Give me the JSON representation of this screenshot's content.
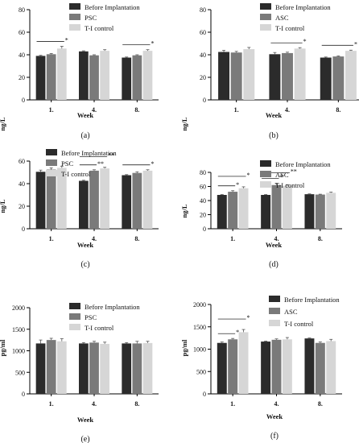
{
  "figure": {
    "background": "#ffffff",
    "axis_color": "#000000",
    "series_colors": [
      "#2b2b2b",
      "#7a7a7a",
      "#d6d6d6"
    ]
  },
  "chart_data": [
    {
      "type": "bar",
      "panel_label": "(a)",
      "ylabel": "ng/L",
      "xlabel": "Week",
      "ylim": [
        0,
        80
      ],
      "yticks": [
        "0",
        "20",
        "40",
        "60",
        "80"
      ],
      "categories": [
        "1.",
        "4.",
        "8."
      ],
      "legend_position": "top-right",
      "series": [
        {
          "name": "Before Implantation",
          "values": [
            39,
            43,
            37.5
          ],
          "errors": [
            0.5,
            0.5,
            0.5
          ]
        },
        {
          "name": "PSC",
          "values": [
            40.5,
            39.5,
            39.5
          ],
          "errors": [
            0.6,
            0.5,
            0.5
          ]
        },
        {
          "name": "T-I control",
          "values": [
            45.5,
            43.5,
            43.5
          ],
          "errors": [
            2,
            1,
            1
          ]
        }
      ],
      "significance": [
        {
          "group": 0,
          "from": 0,
          "to": 2,
          "label": "*"
        },
        {
          "group": 2,
          "from": 0,
          "to": 2,
          "label": "*"
        }
      ]
    },
    {
      "type": "bar",
      "panel_label": "(b)",
      "ylabel": "ng/L",
      "xlabel": "Week",
      "ylim": [
        0,
        80
      ],
      "yticks": [
        "0",
        "20",
        "40",
        "60",
        "80"
      ],
      "categories": [
        "1.",
        "4.",
        "8."
      ],
      "legend_position": "top-right",
      "series": [
        {
          "name": "Before Implantation",
          "values": [
            42.5,
            40.5,
            37.5
          ],
          "errors": [
            1.5,
            1.5,
            0.5
          ]
        },
        {
          "name": "ASC",
          "values": [
            42,
            41.5,
            38.5
          ],
          "errors": [
            1,
            0.8,
            0.5
          ]
        },
        {
          "name": "T-I control",
          "values": [
            45,
            45.5,
            43.5
          ],
          "errors": [
            1.5,
            0.8,
            0.6
          ]
        }
      ],
      "significance": [
        {
          "group": 1,
          "from": 0,
          "to": 2,
          "label": "*"
        },
        {
          "group": 2,
          "from": 0,
          "to": 2,
          "label": "*"
        }
      ]
    },
    {
      "type": "bar",
      "panel_label": "(c)",
      "ylabel": "ng/L",
      "xlabel": "Week",
      "ylim": [
        0,
        60
      ],
      "yticks": [
        "0",
        "20",
        "40",
        "60"
      ],
      "categories": [
        "1.",
        "4.",
        "8."
      ],
      "legend_position": "top-right",
      "series": [
        {
          "name": "Before Implantation",
          "values": [
            50.5,
            42.5,
            47.5
          ],
          "errors": [
            1.5,
            0.5,
            0.5
          ]
        },
        {
          "name": "PSC",
          "values": [
            52.5,
            51.5,
            49.5
          ],
          "errors": [
            1.5,
            0.8,
            1
          ]
        },
        {
          "name": "T-I control",
          "values": [
            54,
            53.5,
            51.5
          ],
          "errors": [
            1.5,
            1,
            0.8
          ]
        }
      ],
      "significance": [
        {
          "group": 1,
          "from": 0,
          "to": 1,
          "label": "**"
        },
        {
          "group": 1,
          "from": 0,
          "to": 2,
          "label": "**"
        },
        {
          "group": 2,
          "from": 0,
          "to": 2,
          "label": "*"
        }
      ]
    },
    {
      "type": "bar",
      "panel_label": "(d)",
      "ylabel": "ng/L",
      "xlabel": "Week",
      "ylim": [
        0,
        80
      ],
      "yticks": [
        "0",
        "20",
        "40",
        "60",
        "80"
      ],
      "categories": [
        "1.",
        "4.",
        "8."
      ],
      "legend_position": "top-right",
      "series": [
        {
          "name": "Before Implantation",
          "values": [
            48,
            48,
            49
          ],
          "errors": [
            0.5,
            0.5,
            0.5
          ]
        },
        {
          "name": "ASC",
          "values": [
            52.5,
            62,
            48.5
          ],
          "errors": [
            1.5,
            2.5,
            0.5
          ]
        },
        {
          "name": "T-I control",
          "values": [
            57.5,
            61,
            51
          ],
          "errors": [
            2,
            1.5,
            1
          ]
        }
      ],
      "significance": [
        {
          "group": 0,
          "from": 0,
          "to": 1,
          "label": "*"
        },
        {
          "group": 0,
          "from": 0,
          "to": 2,
          "label": "*"
        },
        {
          "group": 1,
          "from": 0,
          "to": 1,
          "label": "*"
        },
        {
          "group": 1,
          "from": 0,
          "to": 2,
          "label": "**"
        }
      ]
    },
    {
      "type": "bar",
      "panel_label": "(e)",
      "ylabel": "pg/ml",
      "xlabel": "Week",
      "ylim": [
        0,
        2000
      ],
      "yticks": [
        "0",
        "500",
        "1000",
        "1500",
        "2000"
      ],
      "categories": [
        "1.",
        "4.",
        "8."
      ],
      "legend_position": "top-right",
      "series": [
        {
          "name": "Before Implantation",
          "values": [
            1170,
            1170,
            1170
          ],
          "errors": [
            80,
            20,
            20
          ]
        },
        {
          "name": "PSC",
          "values": [
            1250,
            1190,
            1170
          ],
          "errors": [
            40,
            30,
            50
          ]
        },
        {
          "name": "T-I control",
          "values": [
            1220,
            1160,
            1180
          ],
          "errors": [
            60,
            40,
            40
          ]
        }
      ],
      "significance": []
    },
    {
      "type": "bar",
      "panel_label": "(f)",
      "ylabel": "pg/ml",
      "xlabel": "Week",
      "ylim": [
        0,
        2000
      ],
      "yticks": [
        "0",
        "500",
        "1000",
        "1500",
        "2000"
      ],
      "categories": [
        "1.",
        "4.",
        "8."
      ],
      "legend_position": "top-right",
      "series": [
        {
          "name": "Before Implantation",
          "values": [
            1140,
            1170,
            1240
          ],
          "errors": [
            20,
            10,
            10
          ]
        },
        {
          "name": "ASC",
          "values": [
            1220,
            1210,
            1140
          ],
          "errors": [
            20,
            20,
            20
          ]
        },
        {
          "name": "T-I control",
          "values": [
            1380,
            1220,
            1180
          ],
          "errors": [
            60,
            40,
            40
          ]
        }
      ],
      "significance": [
        {
          "group": 0,
          "from": 0,
          "to": 1,
          "label": "*"
        },
        {
          "group": 0,
          "from": 0,
          "to": 2,
          "label": "*"
        }
      ]
    }
  ]
}
